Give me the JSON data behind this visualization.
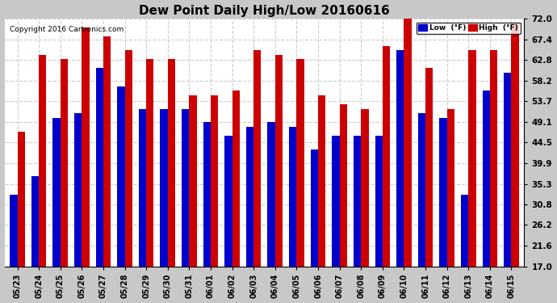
{
  "title": "Dew Point Daily High/Low 20160616",
  "copyright": "Copyright 2016 Cartronics.com",
  "dates": [
    "05/23",
    "05/24",
    "05/25",
    "05/26",
    "05/27",
    "05/28",
    "05/29",
    "05/30",
    "05/31",
    "06/01",
    "06/02",
    "06/03",
    "06/04",
    "06/05",
    "06/06",
    "06/07",
    "06/08",
    "06/09",
    "06/10",
    "06/11",
    "06/12",
    "06/13",
    "06/14",
    "06/15"
  ],
  "low_values": [
    33,
    37,
    50,
    51,
    61,
    57,
    52,
    52,
    52,
    49,
    46,
    48,
    49,
    48,
    43,
    46,
    46,
    46,
    65,
    51,
    50,
    33,
    56,
    60
  ],
  "high_values": [
    47,
    64,
    63,
    70,
    68,
    65,
    63,
    63,
    55,
    55,
    56,
    65,
    64,
    63,
    55,
    53,
    52,
    66,
    73,
    61,
    52,
    65,
    65,
    71
  ],
  "ylim": [
    17.0,
    72.0
  ],
  "yticks": [
    17.0,
    21.6,
    26.2,
    30.8,
    35.3,
    39.9,
    44.5,
    49.1,
    53.7,
    58.2,
    62.8,
    67.4,
    72.0
  ],
  "low_color": "#0000cc",
  "high_color": "#cc0000",
  "background_color": "#c8c8c8",
  "plot_bg_color": "#ffffff",
  "grid_color": "#cccccc",
  "bar_width": 0.35,
  "legend_low_label": "Low  (°F)",
  "legend_high_label": "High  (°F)",
  "ybase": 17.0
}
